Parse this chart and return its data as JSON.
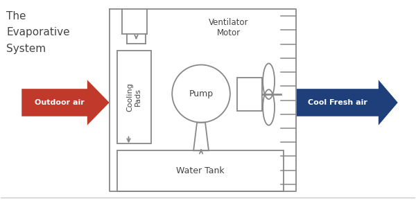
{
  "title_line1": "The",
  "title_line2": "Evaporative",
  "title_line3": "System",
  "title_fontsize": 11,
  "title_color": "#444444",
  "bg_color": "#ffffff",
  "outdoor_air_label": "Outdoor air",
  "cool_fresh_label": "Cool Fresh air",
  "arrow_red": "#c0392b",
  "arrow_blue": "#1f3f7a",
  "pump_label": "Pump",
  "cooling_pads_label": "Cooling\nPads",
  "water_tank_label": "Water Tank",
  "ventilator_label": "Ventilator\nMotor",
  "line_color": "#888888",
  "line_lw": 1.3,
  "bottom_line_color": "#cccccc"
}
